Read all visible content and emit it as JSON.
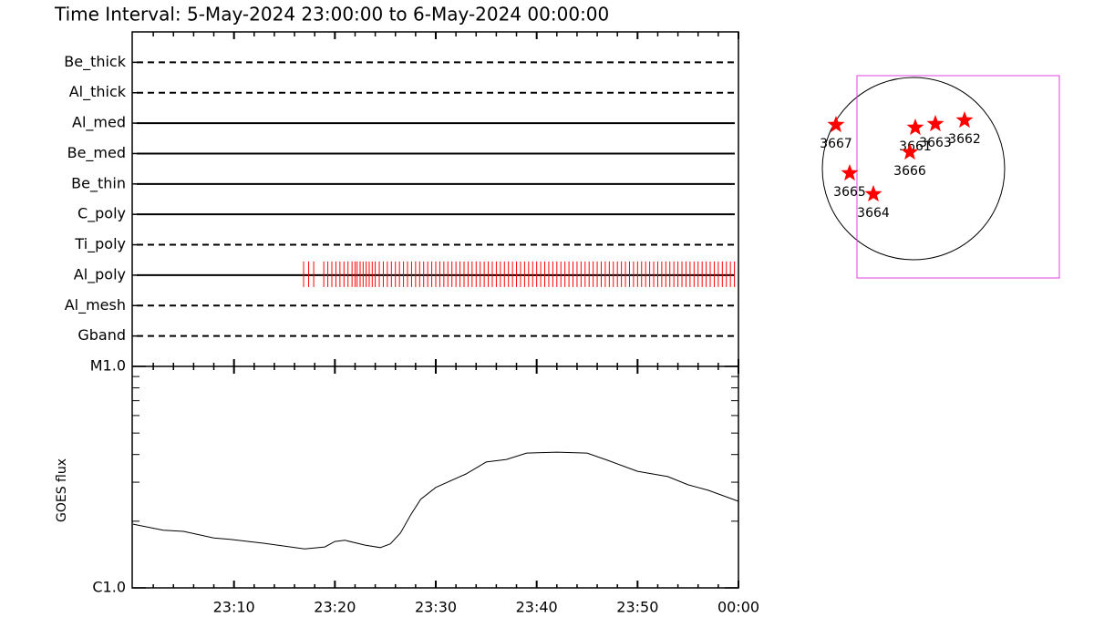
{
  "chart_data": [
    {
      "type": "filter-timeline",
      "title": "Time Interval:  5-May-2024 23:00:00 to  6-May-2024 00:00:00",
      "xlim": [
        0,
        60
      ],
      "xticks": [
        {
          "value": 10,
          "label": "23:10"
        },
        {
          "value": 20,
          "label": "23:20"
        },
        {
          "value": 30,
          "label": "23:30"
        },
        {
          "value": 40,
          "label": "23:40"
        },
        {
          "value": 50,
          "label": "23:50"
        },
        {
          "value": 60,
          "label": "00:00"
        }
      ],
      "xminorticks": [
        2,
        4,
        6,
        8,
        12,
        14,
        16,
        18,
        22,
        24,
        26,
        28,
        32,
        34,
        36,
        38,
        42,
        44,
        46,
        48,
        52,
        54,
        56,
        58
      ],
      "series": [
        {
          "name": "Be_thick",
          "line": "dashed"
        },
        {
          "name": "Al_thick",
          "line": "dashed"
        },
        {
          "name": "Al_med",
          "line": "solid"
        },
        {
          "name": "Be_med",
          "line": "solid"
        },
        {
          "name": "Be_thin",
          "line": "solid"
        },
        {
          "name": "C_poly",
          "line": "solid"
        },
        {
          "name": "Ti_poly",
          "line": "dashed"
        },
        {
          "name": "Al_poly",
          "line": "solid",
          "color": "#ff0000",
          "x": [
            16.9,
            17.4,
            17.9,
            18.9,
            19.3,
            19.7,
            20.1,
            20.5,
            20.9,
            21.3,
            21.7,
            22.0,
            22.2,
            22.5,
            22.8,
            23.1,
            23.4,
            23.7,
            24.0,
            24.4,
            24.8,
            25.2,
            25.6,
            26.0,
            26.4,
            26.8,
            27.2,
            27.6,
            28.0,
            28.4,
            28.8,
            29.2,
            29.6,
            30.0,
            30.4,
            30.8,
            31.2,
            31.6,
            32.0,
            32.4,
            32.8,
            33.2,
            33.6,
            34.0,
            34.4,
            34.8,
            35.2,
            35.6,
            36.0,
            36.4,
            36.8,
            37.2,
            37.6,
            38.0,
            38.4,
            38.8,
            39.2,
            39.6,
            40.0,
            40.4,
            40.8,
            41.2,
            41.6,
            42.0,
            42.4,
            42.8,
            43.2,
            43.6,
            44.0,
            44.4,
            44.8,
            45.2,
            45.6,
            46.0,
            46.4,
            46.8,
            47.2,
            47.6,
            48.0,
            48.4,
            48.8,
            49.2,
            49.6,
            50.0,
            50.4,
            50.8,
            51.2,
            51.6,
            52.0,
            52.4,
            52.8,
            53.2,
            53.6,
            54.0,
            54.4,
            54.8,
            55.2,
            55.6,
            56.0,
            56.4,
            56.8,
            57.2,
            57.6,
            58.0,
            58.4,
            58.8,
            59.2,
            59.6
          ]
        },
        {
          "name": "Al_mesh",
          "line": "dashed"
        },
        {
          "name": "Gband",
          "line": "dashed"
        }
      ]
    },
    {
      "type": "line",
      "ylabel": "GOES flux",
      "log": true,
      "color": "#000000",
      "xlim": [
        0,
        60
      ],
      "ylim": [
        1e-06,
        1e-05
      ],
      "yticks": [
        {
          "value": 1e-06,
          "label": "C1.0"
        },
        {
          "value": 1e-05,
          "label": "M1.0"
        }
      ],
      "yminorticks": [
        2e-06,
        3e-06,
        4e-06,
        5e-06,
        6e-06,
        7e-06,
        8e-06,
        9e-06
      ],
      "x": [
        0,
        3,
        5,
        8,
        10,
        13,
        17,
        19,
        20,
        21,
        23,
        24.5,
        25.5,
        26.5,
        27.5,
        28.5,
        30,
        33,
        35,
        37,
        39,
        42,
        45,
        47,
        50,
        53,
        55,
        57,
        60
      ],
      "values": [
        1.94e-06,
        1.82e-06,
        1.8e-06,
        1.68e-06,
        1.65e-06,
        1.59e-06,
        1.5e-06,
        1.53e-06,
        1.62e-06,
        1.64e-06,
        1.56e-06,
        1.52e-06,
        1.58e-06,
        1.77e-06,
        2.13e-06,
        2.51e-06,
        2.84e-06,
        3.27e-06,
        3.7e-06,
        3.8e-06,
        4.06e-06,
        4.1e-06,
        4.06e-06,
        3.77e-06,
        3.36e-06,
        3.18e-06,
        2.92e-06,
        2.76e-06,
        2.46e-06
      ]
    }
  ],
  "map": {
    "regions": [
      "3667",
      "3665",
      "3664",
      "3661",
      "3663",
      "3662",
      "3666"
    ],
    "color": "#ff0000"
  }
}
